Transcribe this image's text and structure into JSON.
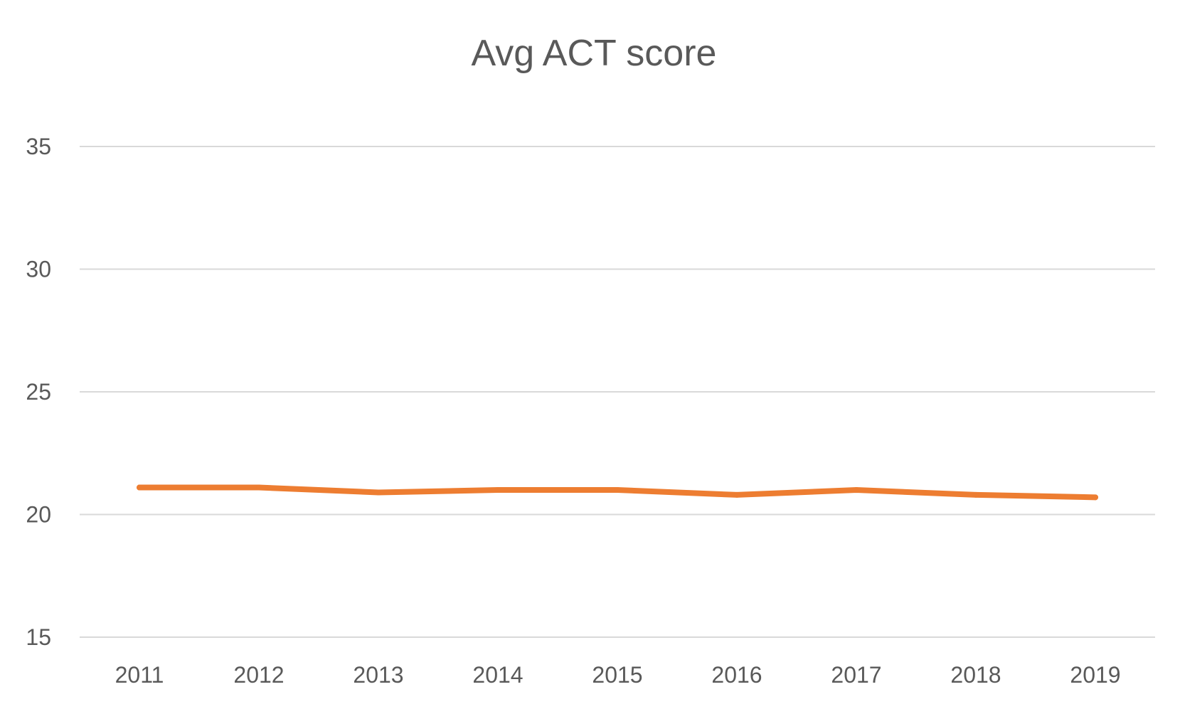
{
  "chart_data": {
    "type": "line",
    "title": "Avg ACT score",
    "categories": [
      "2011",
      "2012",
      "2013",
      "2014",
      "2015",
      "2016",
      "2017",
      "2018",
      "2019"
    ],
    "series": [
      {
        "values": [
          21.1,
          21.1,
          20.9,
          21.0,
          21.0,
          20.8,
          21.0,
          20.8,
          20.7
        ],
        "color": "#ED7D31"
      }
    ],
    "y_ticks": [
      "15",
      "20",
      "25",
      "30",
      "35"
    ],
    "ylim": [
      15,
      35
    ],
    "grid": true,
    "legend": "none"
  }
}
